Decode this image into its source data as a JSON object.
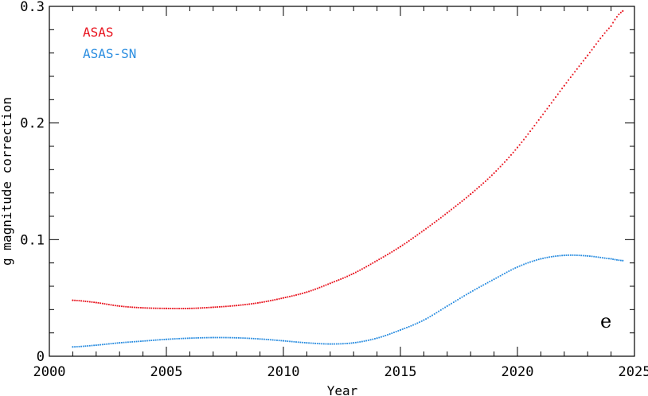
{
  "chart_data": {
    "type": "scatter",
    "xlabel": "Year",
    "ylabel": "g magnitude correction",
    "xlim": [
      2000,
      2025
    ],
    "ylim": [
      0,
      0.3
    ],
    "x_ticks": [
      2000,
      2005,
      2010,
      2015,
      2020,
      2025
    ],
    "x_tick_labels": [
      "2000",
      "2005",
      "2010",
      "2015",
      "2020",
      "2025"
    ],
    "y_ticks": [
      0,
      0.1,
      0.2,
      0.3
    ],
    "y_tick_labels": [
      "0",
      "0.1",
      "0.2",
      "0.3"
    ],
    "legend_placement": "top-left",
    "panel_label": "e",
    "series": [
      {
        "name": "ASAS",
        "color": "#e8121d",
        "x": [
          2001.0,
          2002.0,
          2003.0,
          2004.0,
          2005.0,
          2006.0,
          2007.0,
          2008.0,
          2009.0,
          2010.0,
          2011.0,
          2012.0,
          2013.0,
          2014.0,
          2015.0,
          2016.0,
          2017.0,
          2018.0,
          2019.0,
          2020.0,
          2021.0,
          2022.0,
          2023.0,
          2024.0,
          2024.5
        ],
        "values": [
          0.048,
          0.046,
          0.043,
          0.0415,
          0.041,
          0.041,
          0.042,
          0.0435,
          0.046,
          0.05,
          0.055,
          0.0625,
          0.071,
          0.082,
          0.094,
          0.108,
          0.123,
          0.139,
          0.157,
          0.179,
          0.205,
          0.232,
          0.258,
          0.283,
          0.296
        ]
      },
      {
        "name": "ASAS-SN",
        "color": "#2a8de0",
        "x": [
          2001.0,
          2002.0,
          2003.0,
          2004.0,
          2005.0,
          2006.0,
          2007.0,
          2008.0,
          2009.0,
          2010.0,
          2011.0,
          2012.0,
          2013.0,
          2014.0,
          2015.0,
          2016.0,
          2017.0,
          2018.0,
          2019.0,
          2020.0,
          2021.0,
          2022.0,
          2023.0,
          2024.0,
          2024.5
        ],
        "values": [
          0.008,
          0.0095,
          0.0115,
          0.013,
          0.0145,
          0.0155,
          0.016,
          0.0158,
          0.0148,
          0.0132,
          0.0115,
          0.0105,
          0.0115,
          0.0155,
          0.0225,
          0.031,
          0.043,
          0.055,
          0.066,
          0.0765,
          0.0835,
          0.0865,
          0.086,
          0.0835,
          0.082
        ]
      }
    ]
  }
}
